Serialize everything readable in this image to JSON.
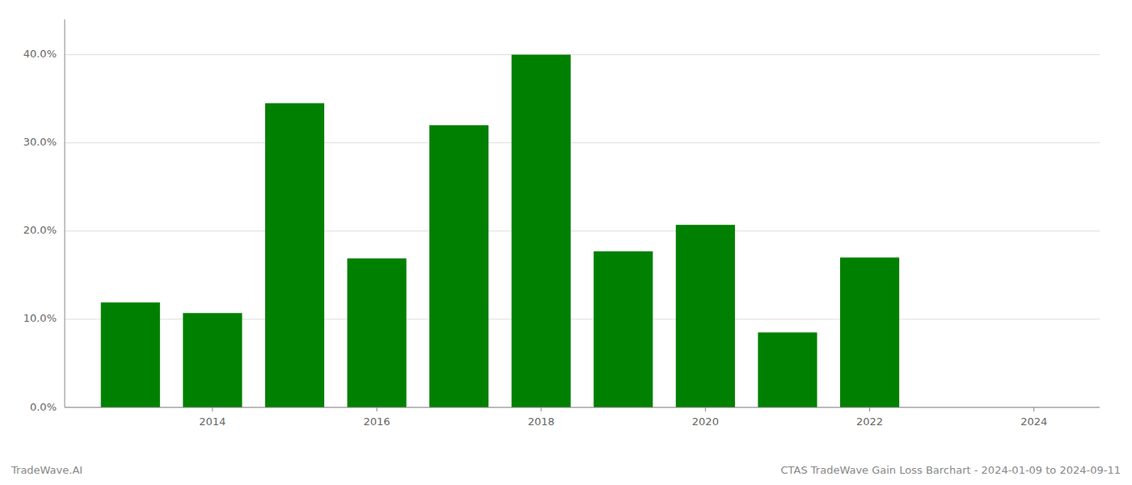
{
  "chart_data": {
    "type": "bar",
    "title": "CTAS TradeWave Gain Loss Barchart - 2024-01-09 to 2024-09-11",
    "annotations": [
      "TradeWave.AI"
    ],
    "x": [
      2013,
      2014,
      2015,
      2016,
      2017,
      2018,
      2019,
      2020,
      2021,
      2022
    ],
    "values": [
      0.119,
      0.107,
      0.345,
      0.169,
      0.32,
      0.4,
      0.177,
      0.207,
      0.085,
      0.17
    ],
    "color": "#008000",
    "xlim": [
      2012.2,
      2024.8
    ],
    "xticks": [
      2014,
      2016,
      2018,
      2020,
      2022,
      2024
    ],
    "ylim": [
      0,
      0.44
    ],
    "yticks": [
      {
        "value": 0.0,
        "label": "0.0%"
      },
      {
        "value": 0.1,
        "label": "10.0%"
      },
      {
        "value": 0.2,
        "label": "20.0%"
      },
      {
        "value": 0.3,
        "label": "30.0%"
      },
      {
        "value": 0.4,
        "label": "40.0%"
      }
    ],
    "grid": true
  }
}
